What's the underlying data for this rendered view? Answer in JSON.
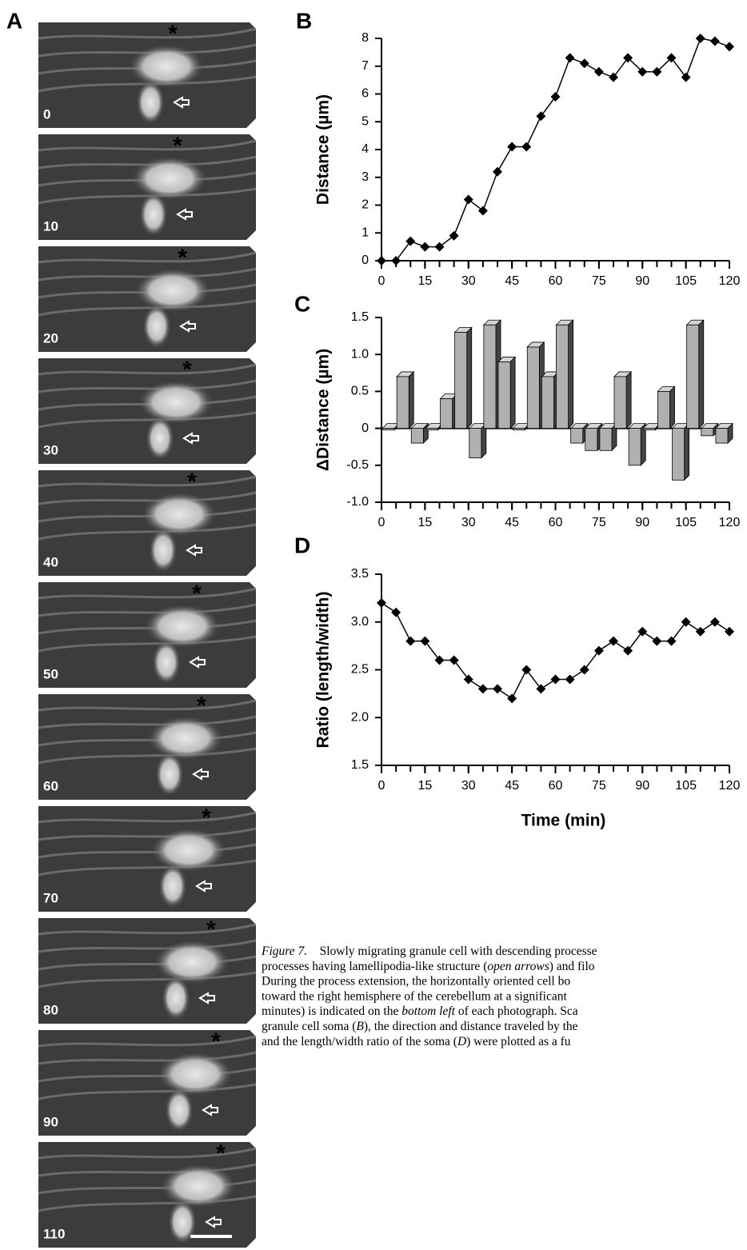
{
  "panel_labels": [
    "A",
    "B",
    "C",
    "D"
  ],
  "image_panel": {
    "frame_labels": [
      "0",
      "10",
      "20",
      "30",
      "40",
      "50",
      "60",
      "70",
      "80",
      "90",
      "110"
    ]
  },
  "chart_data": [
    {
      "type": "line",
      "ylabel": "Distance (µm)",
      "x": [
        0,
        5,
        10,
        15,
        20,
        25,
        30,
        35,
        40,
        45,
        50,
        55,
        60,
        65,
        70,
        75,
        80,
        85,
        90,
        95,
        100,
        105,
        110,
        115,
        120
      ],
      "series": [
        {
          "color": "#000000",
          "values": [
            0,
            0,
            0.7,
            0.5,
            0.5,
            0.9,
            2.2,
            1.8,
            3.2,
            4.1,
            4.1,
            5.2,
            5.9,
            7.3,
            7.1,
            6.8,
            6.6,
            7.3,
            6.8,
            6.8,
            7.3,
            6.6,
            8.0,
            7.9,
            7.7
          ]
        }
      ],
      "xlim": [
        0,
        120
      ],
      "xticks": [
        0,
        15,
        30,
        45,
        60,
        75,
        90,
        105,
        120
      ],
      "ylim": [
        0,
        8
      ],
      "yticks": [
        0,
        1,
        2,
        3,
        4,
        5,
        6,
        7,
        8
      ]
    },
    {
      "type": "bar3d",
      "ylabel": "ΔDistance (µm)",
      "x": [
        5,
        10,
        15,
        20,
        25,
        30,
        35,
        40,
        45,
        50,
        55,
        60,
        65,
        70,
        75,
        80,
        85,
        90,
        95,
        100,
        105,
        110,
        115,
        120
      ],
      "series": [
        {
          "color": "#b0b0b0",
          "values": [
            0,
            0.7,
            -0.2,
            0,
            0.4,
            1.3,
            -0.4,
            1.4,
            0.9,
            0,
            1.1,
            0.7,
            1.4,
            -0.2,
            -0.3,
            -0.3,
            0.7,
            -0.5,
            0,
            0.5,
            -0.7,
            1.4,
            -0.1,
            -0.2
          ]
        }
      ],
      "xlim": [
        0,
        120
      ],
      "xticks": [
        0,
        15,
        30,
        45,
        60,
        75,
        90,
        105,
        120
      ],
      "ylim": [
        -1,
        1.5
      ],
      "yticks": [
        {
          "value": -1,
          "label": "-1.0"
        },
        -0.5,
        0,
        0.5,
        {
          "value": 1,
          "label": "1.0"
        },
        1.5
      ]
    },
    {
      "type": "line",
      "ylabel": "Ratio (length/width)",
      "xlabel": "Time (min)",
      "x": [
        0,
        5,
        10,
        15,
        20,
        25,
        30,
        35,
        40,
        45,
        50,
        55,
        60,
        65,
        70,
        75,
        80,
        85,
        90,
        95,
        100,
        105,
        110,
        115,
        120
      ],
      "series": [
        {
          "color": "#000000",
          "values": [
            3.2,
            3.1,
            2.8,
            2.8,
            2.6,
            2.6,
            2.4,
            2.3,
            2.3,
            2.2,
            2.5,
            2.3,
            2.4,
            2.4,
            2.5,
            2.7,
            2.8,
            2.7,
            2.9,
            2.8,
            2.8,
            3.0,
            2.9,
            3.0,
            2.9
          ]
        }
      ],
      "xlim": [
        0,
        120
      ],
      "xticks": [
        0,
        15,
        30,
        45,
        60,
        75,
        90,
        105,
        120
      ],
      "ylim": [
        1.5,
        3.5
      ],
      "yticks": [
        1.5,
        {
          "value": 2,
          "label": "2.0"
        },
        2.5,
        {
          "value": 3,
          "label": "3.0"
        },
        3.5
      ]
    }
  ],
  "caption": {
    "lines": [
      [
        {
          "text": "Figure 7.",
          "italic": true
        },
        {
          "text": " Slowly migrating granule cell with descending processe"
        }
      ],
      [
        {
          "text": "processes having lamellipodia-like structure ("
        },
        {
          "text": "open arrows",
          "italic": true
        },
        {
          "text": ") and filo"
        }
      ],
      [
        {
          "text": "During the process extension, the horizontally oriented cell bo"
        }
      ],
      [
        {
          "text": "toward the right hemisphere of the cerebellum at a significant"
        }
      ],
      [
        {
          "text": "minutes) is indicated on the "
        },
        {
          "text": "bottom left",
          "italic": true
        },
        {
          "text": " of each photograph. Sca"
        }
      ],
      [
        {
          "text": "granule cell soma ("
        },
        {
          "text": "B",
          "italic": true
        },
        {
          "text": "), the direction and distance traveled by the"
        }
      ],
      [
        {
          "text": "and the length/width ratio of the soma ("
        },
        {
          "text": "D",
          "italic": true
        },
        {
          "text": ") were plotted as a fu"
        }
      ]
    ]
  }
}
